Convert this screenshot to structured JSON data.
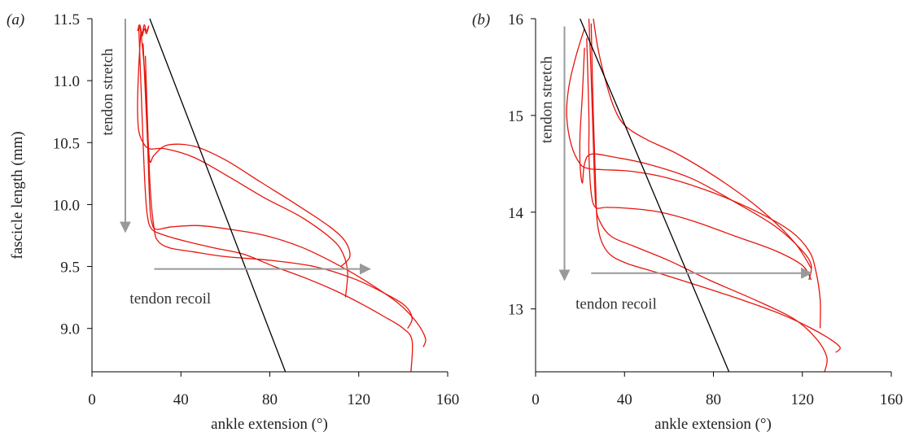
{
  "chart_data": [
    {
      "panel": "(a)",
      "type": "line",
      "xlabel": "ankle extension (°)",
      "ylabel": "fascicle length (mm)",
      "xlim": [
        0,
        160
      ],
      "ylim": [
        8.65,
        11.5
      ],
      "xticks": [
        0,
        40,
        80,
        120,
        160
      ],
      "yticks": [
        9.0,
        9.5,
        10.0,
        10.5,
        11.0,
        11.5
      ],
      "ytick_labels": [
        "9.0",
        "9.5",
        "10.0",
        "10.5",
        "11.0",
        "11.5"
      ],
      "series_color": "#e8140c",
      "fit_color": "#000000",
      "arrow_color": "#999999",
      "series": [
        {
          "x": [
            21,
            23,
            24,
            25,
            27,
            33,
            43,
            55,
            68,
            82,
            97,
            110,
            121,
            131,
            140,
            144,
            143.5
          ],
          "y": [
            11.45,
            10.5,
            10.1,
            9.9,
            9.8,
            9.75,
            9.7,
            9.65,
            9.6,
            9.5,
            9.4,
            9.3,
            9.2,
            9.1,
            9.0,
            8.9,
            8.65
          ]
        },
        {
          "x": [
            22,
            21,
            20.5,
            21,
            23,
            26,
            33,
            46,
            62,
            78,
            94,
            108,
            113,
            115,
            114
          ],
          "y": [
            11.4,
            11.1,
            10.8,
            10.6,
            10.5,
            10.45,
            10.45,
            10.38,
            10.22,
            10.05,
            9.9,
            9.72,
            9.6,
            9.45,
            9.25
          ]
        },
        {
          "x": [
            22,
            24,
            25,
            26,
            28,
            34,
            46,
            60,
            76,
            92,
            107,
            114,
            116,
            112
          ],
          "y": [
            11.4,
            11.0,
            10.6,
            10.35,
            10.4,
            10.48,
            10.47,
            10.36,
            10.18,
            10.0,
            9.82,
            9.7,
            9.58,
            9.5
          ]
        },
        {
          "x": [
            23,
            25,
            26,
            27,
            29,
            36,
            48,
            62,
            78,
            95,
            112,
            126,
            138,
            146,
            150,
            149
          ],
          "y": [
            11.3,
            10.5,
            10.0,
            9.85,
            9.8,
            9.82,
            9.83,
            9.8,
            9.75,
            9.65,
            9.5,
            9.35,
            9.2,
            9.05,
            8.92,
            8.85
          ]
        },
        {
          "x": [
            24,
            26,
            28,
            30,
            35,
            45,
            60,
            80,
            100,
            118,
            132,
            141,
            144,
            142
          ],
          "y": [
            11.2,
            10.2,
            9.8,
            9.7,
            9.65,
            9.62,
            9.58,
            9.55,
            9.5,
            9.4,
            9.28,
            9.18,
            9.08,
            9.0
          ]
        },
        {
          "x": [
            20.5,
            21.5,
            22.5,
            23.5,
            24.5,
            25.5,
            24.5,
            23.5,
            22.5,
            21.5,
            20.5
          ],
          "y": [
            11.4,
            11.45,
            11.38,
            11.45,
            11.4,
            11.44,
            11.38,
            11.42,
            11.36,
            11.43,
            11.4
          ]
        }
      ],
      "fit_line": {
        "x": [
          26,
          87
        ],
        "y": [
          11.5,
          8.65
        ]
      },
      "annotations": [
        {
          "text": "tendon stretch",
          "kind": "vertical-arrow",
          "x": 15,
          "y_from": 11.5,
          "y_to": 9.78
        },
        {
          "text": "tendon recoil",
          "kind": "horizontal-arrow",
          "y": 9.48,
          "x_from": 28,
          "x_to": 125,
          "label_x": 17,
          "label_y": 9.2
        }
      ]
    },
    {
      "panel": "(b)",
      "type": "line",
      "xlabel": "ankle extension (°)",
      "ylabel": "",
      "xlim": [
        0,
        160
      ],
      "ylim": [
        12.35,
        16
      ],
      "xticks": [
        0,
        40,
        80,
        120,
        160
      ],
      "yticks": [
        13,
        14,
        15,
        16
      ],
      "ytick_labels": [
        "13",
        "14",
        "15",
        "16"
      ],
      "series_color": "#e8140c",
      "fit_color": "#000000",
      "arrow_color": "#999999",
      "series": [
        {
          "x": [
            22,
            18,
            15,
            14,
            16,
            20,
            24,
            30,
            44,
            60,
            80,
            100,
            115,
            123,
            126,
            128,
            128
          ],
          "y": [
            15.9,
            15.6,
            15.3,
            15.0,
            14.7,
            14.5,
            14.45,
            14.44,
            14.42,
            14.35,
            14.2,
            14.0,
            13.8,
            13.6,
            13.4,
            13.1,
            12.8
          ]
        },
        {
          "x": [
            22,
            21,
            20,
            20,
            21,
            22,
            25,
            35,
            50,
            70,
            90,
            108,
            120,
            124,
            123
          ],
          "y": [
            15.7,
            15.2,
            14.8,
            14.5,
            14.3,
            14.5,
            14.6,
            14.57,
            14.5,
            14.35,
            14.1,
            13.85,
            13.6,
            13.45,
            13.3
          ]
        },
        {
          "x": [
            23,
            24,
            24,
            25,
            27,
            32,
            42,
            56,
            72,
            90,
            108,
            120,
            124
          ],
          "y": [
            15.8,
            15.0,
            14.6,
            14.2,
            14.05,
            14.05,
            14.04,
            14.0,
            13.9,
            13.75,
            13.6,
            13.45,
            13.3
          ]
        },
        {
          "x": [
            24,
            25,
            26,
            27,
            29,
            34,
            44,
            60,
            78,
            98,
            116,
            126,
            131,
            130
          ],
          "y": [
            16.0,
            15.4,
            14.7,
            14.1,
            13.9,
            13.75,
            13.65,
            13.5,
            13.3,
            13.1,
            12.9,
            12.7,
            12.5,
            12.35
          ]
        },
        {
          "x": [
            25,
            26,
            27,
            28,
            32,
            40,
            54,
            72,
            92,
            110,
            124,
            133,
            137,
            135
          ],
          "y": [
            15.95,
            15.0,
            14.3,
            13.85,
            13.6,
            13.48,
            13.38,
            13.25,
            13.1,
            12.95,
            12.8,
            12.68,
            12.6,
            12.55
          ]
        },
        {
          "x": [
            26,
            28,
            31,
            35,
            40,
            50,
            64,
            82,
            100,
            116,
            124
          ],
          "y": [
            16.0,
            15.7,
            15.4,
            15.1,
            14.9,
            14.75,
            14.6,
            14.35,
            14.05,
            13.7,
            13.42
          ]
        }
      ],
      "fit_line": {
        "x": [
          20,
          87
        ],
        "y": [
          16.0,
          12.35
        ]
      },
      "annotations": [
        {
          "text": "tendon stretch",
          "kind": "vertical-arrow",
          "x": 13,
          "y_from": 15.92,
          "y_to": 13.3
        },
        {
          "text": "tendon recoil",
          "kind": "horizontal-arrow",
          "y": 13.37,
          "x_from": 25,
          "x_to": 124,
          "label_x": 18,
          "label_y": 13.0
        }
      ]
    }
  ]
}
